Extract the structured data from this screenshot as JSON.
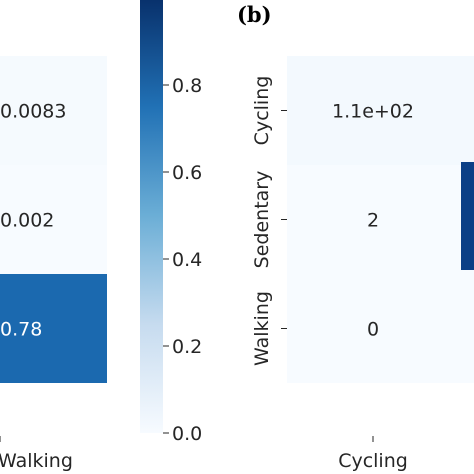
{
  "panel_label": "(b)",
  "chart_data": [
    {
      "type": "heatmap",
      "colormap": "Blues",
      "rows": 3,
      "cells": [
        {
          "row": 0,
          "label": "0.0083",
          "value": 0.0083
        },
        {
          "row": 1,
          "label": "0.002",
          "value": 0.002
        },
        {
          "row": 2,
          "label": "0.78",
          "value": 0.78
        }
      ],
      "x_tick_labels": [
        "Walking"
      ],
      "y_tick_labels": [],
      "colorbar": {
        "vmin": 0.0,
        "vmax": 1.0,
        "ticks": [
          0.8,
          0.6,
          0.4,
          0.2,
          0.0
        ],
        "tick_labels": [
          "0.8",
          "0.6",
          "0.4",
          "0.2",
          "0.0"
        ]
      }
    },
    {
      "type": "heatmap",
      "colormap": "Blues",
      "rows": 3,
      "cells": [
        {
          "row": 0,
          "label": "1.1e+02",
          "value": 110
        },
        {
          "row": 1,
          "label": "2",
          "value": 2
        },
        {
          "row": 2,
          "label": "0",
          "value": 0
        }
      ],
      "x_tick_labels": [
        "Cycling"
      ],
      "y_tick_labels": [
        "Cycling",
        "Sedentary",
        "Walking"
      ]
    }
  ]
}
